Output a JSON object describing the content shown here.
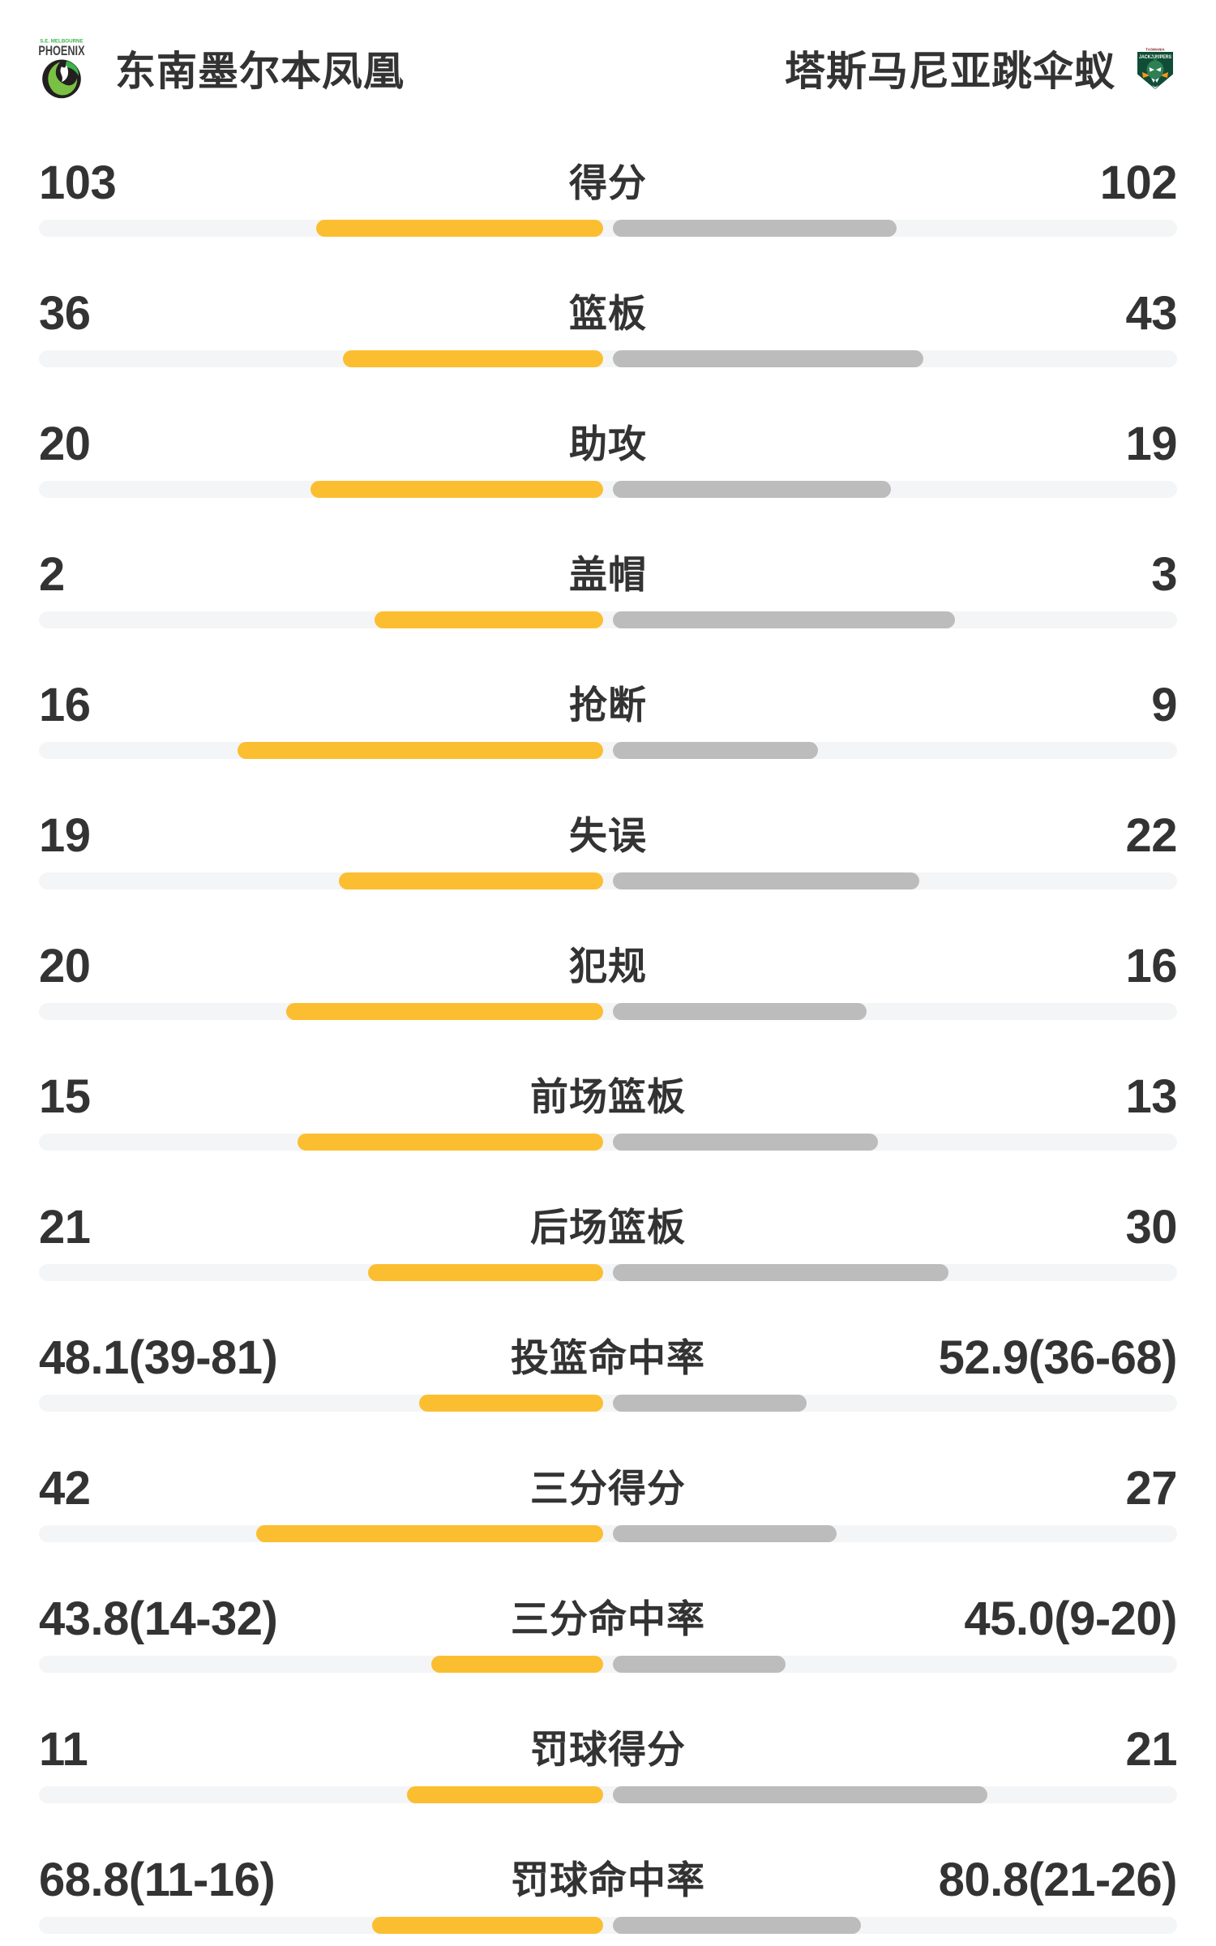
{
  "header": {
    "home": {
      "name": "东南墨尔本凤凰",
      "logo": {
        "top_text": "S.E. MELBOURNE",
        "main_text": "PHOENIX"
      }
    },
    "away": {
      "name": "塔斯马尼亚跳伞蚁",
      "logo": {
        "top_text": "TASMANIA",
        "main_text": "JACKJUMPERS"
      }
    }
  },
  "colors": {
    "text": "#333333",
    "track": "#f4f5f6",
    "home_bar": "#fcbe31",
    "away_bar": "#bcbcbc",
    "phoenix_green": "#39b54a",
    "phoenix_lime": "#7ac143",
    "phoenix_dark": "#414042",
    "jack_green": "#0f4d36",
    "jack_green_light": "#2e8054",
    "jack_orange": "#f7941d"
  },
  "chart_data": {
    "type": "bar",
    "orientation": "horizontal-paired",
    "teams": [
      "东南墨尔本凤凰",
      "塔斯马尼亚跳伞蚁"
    ],
    "rows": [
      {
        "label": "得分",
        "left": "103",
        "right": "102",
        "left_num": 103,
        "right_num": 102,
        "left_w": 354,
        "right_w": 350
      },
      {
        "label": "篮板",
        "left": "36",
        "right": "43",
        "left_num": 36,
        "right_num": 43,
        "left_w": 321,
        "right_w": 383
      },
      {
        "label": "助攻",
        "left": "20",
        "right": "19",
        "left_num": 20,
        "right_num": 19,
        "left_w": 361,
        "right_w": 343
      },
      {
        "label": "盖帽",
        "left": "2",
        "right": "3",
        "left_num": 2,
        "right_num": 3,
        "left_w": 282,
        "right_w": 422
      },
      {
        "label": "抢断",
        "left": "16",
        "right": "9",
        "left_num": 16,
        "right_num": 9,
        "left_w": 451,
        "right_w": 253
      },
      {
        "label": "失误",
        "left": "19",
        "right": "22",
        "left_num": 19,
        "right_num": 22,
        "left_w": 326,
        "right_w": 378
      },
      {
        "label": "犯规",
        "left": "20",
        "right": "16",
        "left_num": 20,
        "right_num": 16,
        "left_w": 391,
        "right_w": 313
      },
      {
        "label": "前场篮板",
        "left": "15",
        "right": "13",
        "left_num": 15,
        "right_num": 13,
        "left_w": 377,
        "right_w": 327
      },
      {
        "label": "后场篮板",
        "left": "21",
        "right": "30",
        "left_num": 21,
        "right_num": 30,
        "left_w": 290,
        "right_w": 414
      },
      {
        "label": "投篮命中率",
        "left": "48.1(39-81)",
        "right": "52.9(36-68)",
        "left_num": 48.1,
        "right_num": 52.9,
        "left_w": 227,
        "right_w": 239
      },
      {
        "label": "三分得分",
        "left": "42",
        "right": "27",
        "left_num": 42,
        "right_num": 27,
        "left_w": 428,
        "right_w": 276
      },
      {
        "label": "三分命中率",
        "left": "43.8(14-32)",
        "right": "45.0(9-20)",
        "left_num": 43.8,
        "right_num": 45.0,
        "left_w": 212,
        "right_w": 213
      },
      {
        "label": "罚球得分",
        "left": "11",
        "right": "21",
        "left_num": 11,
        "right_num": 21,
        "left_w": 242,
        "right_w": 462
      },
      {
        "label": "罚球命中率",
        "left": "68.8(11-16)",
        "right": "80.8(21-26)",
        "left_num": 68.8,
        "right_num": 80.8,
        "left_w": 285,
        "right_w": 306
      }
    ]
  }
}
